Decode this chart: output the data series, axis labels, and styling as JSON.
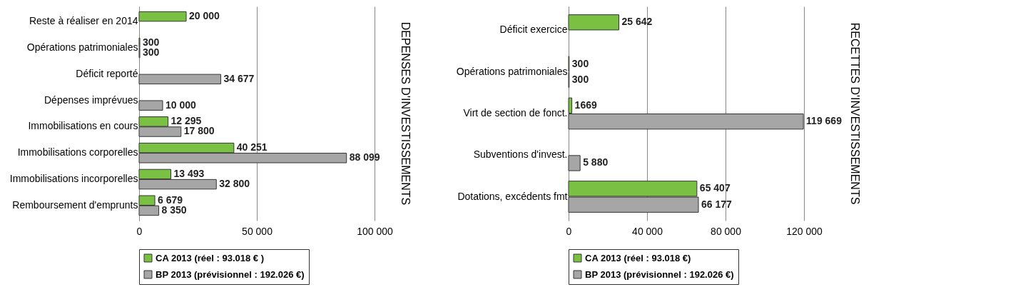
{
  "chart_data": [
    {
      "type": "bar",
      "orientation": "horizontal",
      "ylabel": "DEPENSES D'INVESTISSEMENTS",
      "categories": [
        "Reste à réaliser en 2014",
        "Opérations patrimoniales",
        "Déficit reporté",
        "Dépenses imprévues",
        "Immobilisations  en cours",
        "Immobilisations  corporelles",
        "Immobilisations  incorporelles",
        "Remboursement d'emprunts"
      ],
      "series": [
        {
          "name": "CA 2013 (réel : 93.018 € )",
          "color": "#7ac143",
          "values": [
            20000,
            300,
            null,
            null,
            12295,
            40251,
            13493,
            6679
          ],
          "value_labels": [
            "20 000",
            "300",
            null,
            null,
            "12 295",
            "40 251",
            "13 493",
            "6 679"
          ]
        },
        {
          "name": "BP 2013 (prévisionnel : 192.026 €)",
          "color": "#a6a6a6",
          "values": [
            null,
            300,
            34677,
            10000,
            17800,
            88099,
            32800,
            8350
          ],
          "value_labels": [
            null,
            "300",
            "34 677",
            "10 000",
            "17 800",
            "88 099",
            "32 800",
            "8 350"
          ]
        }
      ],
      "xlim": [
        0,
        100000
      ],
      "xticks": [
        0,
        {
          "value": 50000,
          "label": "50 000"
        },
        {
          "value": 100000,
          "label": "100 000"
        }
      ],
      "grid": "x",
      "legend": "bottom left"
    },
    {
      "type": "bar",
      "orientation": "horizontal",
      "ylabel": "RECETTES D'INVESTISSEMENTS",
      "categories": [
        "Déficit exercice",
        "Opérations patrimoniales",
        "Virt de section de fonct.",
        "Subventions d'invest.",
        "Dotations,  excédents fmt"
      ],
      "series": [
        {
          "name": "CA 2013 (réel : 93.018 €)",
          "color": "#7ac143",
          "values": [
            25642,
            300,
            1669,
            null,
            65407
          ],
          "value_labels": [
            "25 642",
            "300",
            "1669",
            null,
            "65 407"
          ]
        },
        {
          "name": "BP 2013 (prévisionnel : 192.026 €)",
          "color": "#a6a6a6",
          "values": [
            null,
            300,
            119669,
            5880,
            66177
          ],
          "value_labels": [
            null,
            "300",
            "119 669",
            "5 880",
            "66 177"
          ]
        }
      ],
      "xlim": [
        0,
        120000
      ],
      "xticks": [
        0,
        {
          "value": 40000,
          "label": "40 000"
        },
        {
          "value": 80000,
          "label": "80 000"
        },
        {
          "value": 120000,
          "label": "120 000"
        }
      ],
      "grid": "x",
      "legend": "bottom left"
    }
  ]
}
